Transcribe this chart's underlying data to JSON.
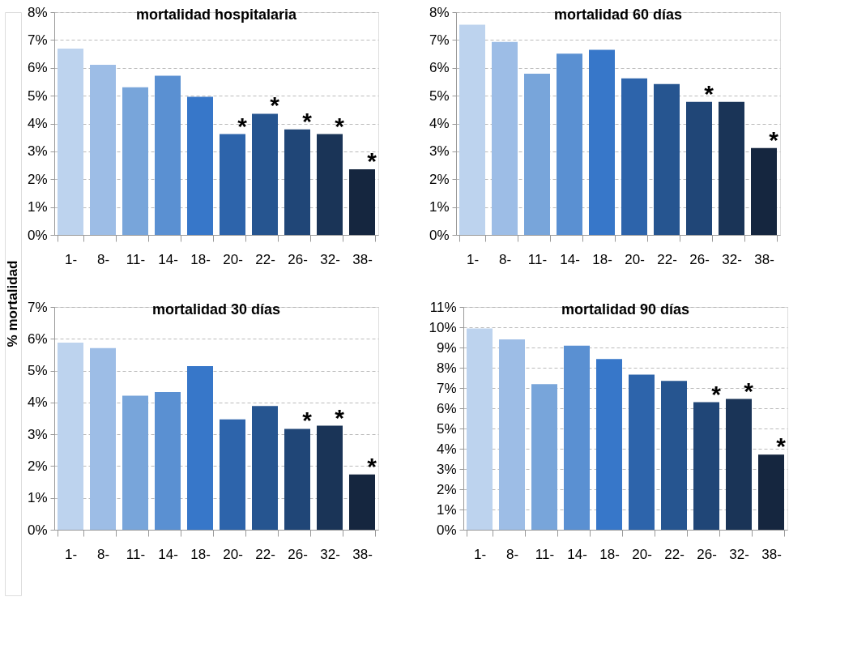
{
  "chart_data": [
    {
      "type": "bar",
      "title": "mortalidad hospitalaria",
      "ylabel": "% mortalidad",
      "categories": [
        "1-",
        "8-",
        "11-",
        "14-",
        "18-",
        "20-",
        "22-",
        "26-",
        "32-",
        "38-"
      ],
      "values": [
        6.69,
        6.11,
        5.3,
        5.72,
        4.96,
        3.62,
        4.35,
        3.79,
        3.62,
        2.36
      ],
      "colors": [
        "#bdd3ee",
        "#9dbde6",
        "#78a5da",
        "#5a90d2",
        "#3777c9",
        "#2d64ab",
        "#265590",
        "#204677",
        "#1a3457",
        "#15263f"
      ],
      "ylim": [
        0,
        8
      ],
      "yticks": [
        {
          "value": 0,
          "label": "0%"
        },
        {
          "value": 1,
          "label": "1%"
        },
        {
          "value": 2,
          "label": "2%"
        },
        {
          "value": 3,
          "label": "3%"
        },
        {
          "value": 4,
          "label": "4%"
        },
        {
          "value": 5,
          "label": "5%"
        },
        {
          "value": 6,
          "label": "6%"
        },
        {
          "value": 7,
          "label": "7%"
        },
        {
          "value": 8,
          "label": "8%"
        }
      ],
      "grid": "y",
      "annotations": [
        {
          "text": "*",
          "x": "20-",
          "y": 3.62
        },
        {
          "text": "*",
          "x": "22-",
          "y": 4.35
        },
        {
          "text": "*",
          "x": "26-",
          "y": 3.79
        },
        {
          "text": "*",
          "x": "32-",
          "y": 3.62
        },
        {
          "text": "*",
          "x": "38-",
          "y": 2.36
        }
      ]
    },
    {
      "type": "bar",
      "title": "mortalidad 60 días",
      "categories": [
        "1-",
        "8-",
        "11-",
        "14-",
        "18-",
        "20-",
        "22-",
        "26-",
        "32-",
        "38-"
      ],
      "values": [
        7.55,
        6.93,
        5.79,
        6.51,
        6.65,
        5.62,
        5.42,
        4.78,
        4.78,
        3.12
      ],
      "colors": [
        "#bdd3ee",
        "#9dbde6",
        "#78a5da",
        "#5a90d2",
        "#3777c9",
        "#2d64ab",
        "#265590",
        "#204677",
        "#1a3457",
        "#15263f"
      ],
      "ylim": [
        0,
        8
      ],
      "yticks": [
        {
          "value": 0,
          "label": "0%"
        },
        {
          "value": 1,
          "label": "1%"
        },
        {
          "value": 2,
          "label": "2%"
        },
        {
          "value": 3,
          "label": "3%"
        },
        {
          "value": 4,
          "label": "4%"
        },
        {
          "value": 5,
          "label": "5%"
        },
        {
          "value": 6,
          "label": "6%"
        },
        {
          "value": 7,
          "label": "7%"
        },
        {
          "value": 8,
          "label": "8%"
        }
      ],
      "grid": "y",
      "annotations": [
        {
          "text": "*",
          "x": "26-",
          "y": 4.78
        },
        {
          "text": "*",
          "x": "38-",
          "y": 3.12
        }
      ]
    },
    {
      "type": "bar",
      "title": "mortalidad 30 días",
      "categories": [
        "1-",
        "8-",
        "11-",
        "14-",
        "18-",
        "20-",
        "22-",
        "26-",
        "32-",
        "38-"
      ],
      "values": [
        5.88,
        5.71,
        4.21,
        4.33,
        5.14,
        3.47,
        3.89,
        3.17,
        3.27,
        1.74
      ],
      "colors": [
        "#bdd3ee",
        "#9dbde6",
        "#78a5da",
        "#5a90d2",
        "#3777c9",
        "#2d64ab",
        "#265590",
        "#204677",
        "#1a3457",
        "#15263f"
      ],
      "ylim": [
        0,
        7
      ],
      "yticks": [
        {
          "value": 0,
          "label": "0%"
        },
        {
          "value": 1,
          "label": "1%"
        },
        {
          "value": 2,
          "label": "2%"
        },
        {
          "value": 3,
          "label": "3%"
        },
        {
          "value": 4,
          "label": "4%"
        },
        {
          "value": 5,
          "label": "5%"
        },
        {
          "value": 6,
          "label": "6%"
        },
        {
          "value": 7,
          "label": "7%"
        }
      ],
      "grid": "y",
      "annotations": [
        {
          "text": "*",
          "x": "26-",
          "y": 3.17
        },
        {
          "text": "*",
          "x": "32-",
          "y": 3.27
        },
        {
          "text": "*",
          "x": "38-",
          "y": 1.74
        }
      ]
    },
    {
      "type": "bar",
      "title": "mortalidad 90 días",
      "categories": [
        "1-",
        "8-",
        "11-",
        "14-",
        "18-",
        "20-",
        "22-",
        "26-",
        "32-",
        "38-"
      ],
      "values": [
        9.94,
        9.4,
        7.19,
        9.09,
        8.43,
        7.66,
        7.35,
        6.3,
        6.46,
        3.71
      ],
      "colors": [
        "#bdd3ee",
        "#9dbde6",
        "#78a5da",
        "#5a90d2",
        "#3777c9",
        "#2d64ab",
        "#265590",
        "#204677",
        "#1a3457",
        "#15263f"
      ],
      "ylim": [
        0,
        11
      ],
      "yticks": [
        {
          "value": 0,
          "label": "0%"
        },
        {
          "value": 1,
          "label": "1%"
        },
        {
          "value": 2,
          "label": "2%"
        },
        {
          "value": 3,
          "label": "3%"
        },
        {
          "value": 4,
          "label": "4%"
        },
        {
          "value": 5,
          "label": "5%"
        },
        {
          "value": 6,
          "label": "6%"
        },
        {
          "value": 7,
          "label": "7%"
        },
        {
          "value": 8,
          "label": "8%"
        },
        {
          "value": 9,
          "label": "9%"
        },
        {
          "value": 10,
          "label": "10%"
        },
        {
          "value": 11,
          "label": "11%"
        }
      ],
      "grid": "y",
      "annotations": [
        {
          "text": "*",
          "x": "26-",
          "y": 6.3
        },
        {
          "text": "*",
          "x": "32-",
          "y": 6.46
        },
        {
          "text": "*",
          "x": "38-",
          "y": 3.71
        }
      ]
    }
  ]
}
